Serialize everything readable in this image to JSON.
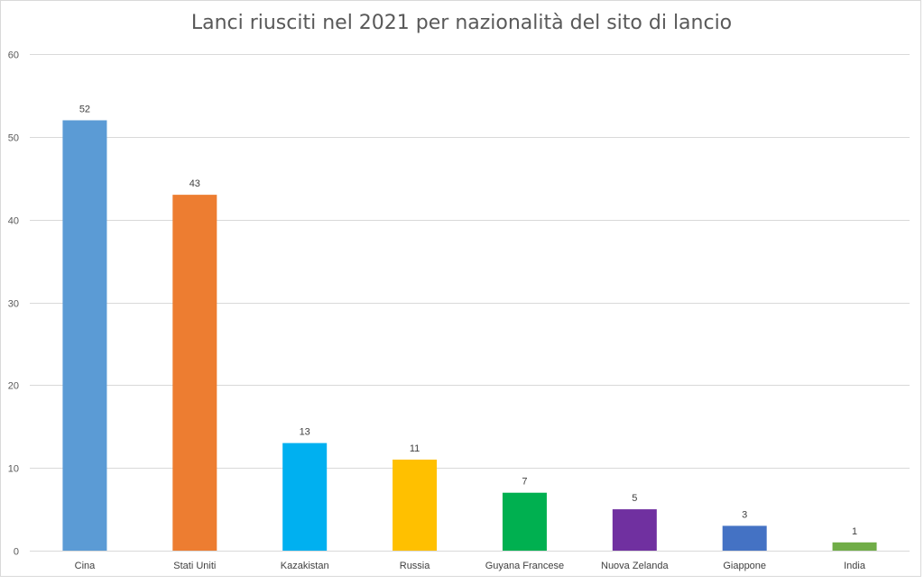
{
  "chart_data": {
    "type": "bar",
    "title": "Lanci riusciti nel 2021 per nazionalità del sito di lancio",
    "xlabel": "",
    "ylabel": "",
    "categories": [
      "Cina",
      "Stati Uniti",
      "Kazakistan",
      "Russia",
      "Guyana Francese",
      "Nuova Zelanda",
      "Giappone",
      "India"
    ],
    "values": [
      52,
      43,
      13,
      11,
      7,
      5,
      3,
      1
    ],
    "colors": [
      "#5b9bd5",
      "#ed7d31",
      "#00b0f0",
      "#ffc000",
      "#00b050",
      "#7030a0",
      "#4472c4",
      "#70ad47"
    ],
    "ylim": [
      0,
      60
    ],
    "yticks": [
      0,
      10,
      20,
      30,
      40,
      50,
      60
    ],
    "grid": true,
    "data_labels": true,
    "legend": "none"
  }
}
